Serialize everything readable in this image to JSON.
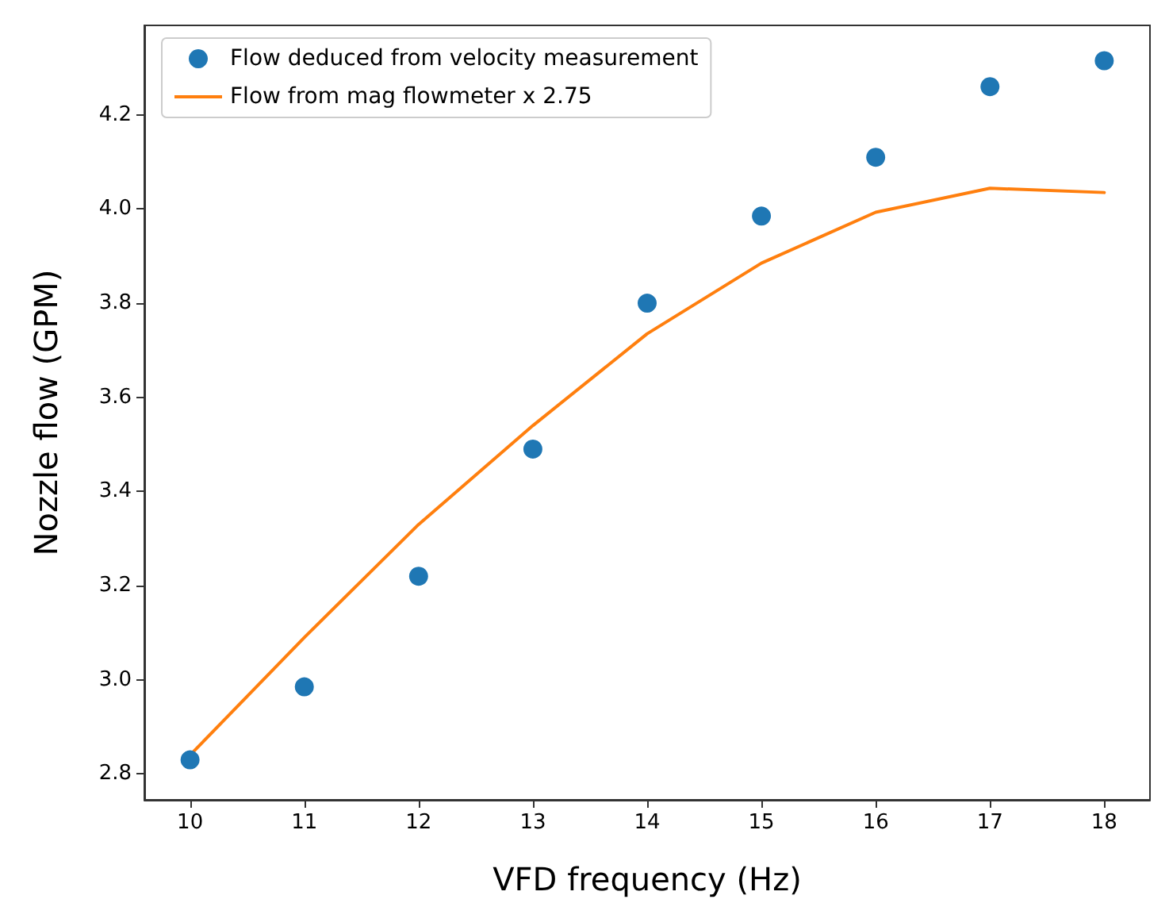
{
  "chart_data": {
    "type": "scatter",
    "xlabel": "VFD frequency (Hz)",
    "ylabel": "Nozzle flow (GPM)",
    "xlim": [
      9.6,
      18.4
    ],
    "xticks": [
      10,
      11,
      12,
      13,
      14,
      15,
      16,
      17,
      18
    ],
    "ylim": [
      2.745,
      4.39
    ],
    "yticks": [
      2.8,
      {
        "value": 3,
        "label": "3.0"
      },
      3.2,
      3.4,
      3.6,
      3.8,
      {
        "value": 4,
        "label": "4.0"
      },
      4.2
    ],
    "grid": false,
    "legend": "top left",
    "marker": "circle",
    "x": [
      10,
      11,
      12,
      13,
      14,
      15,
      16,
      17,
      18
    ],
    "series": [
      {
        "name": "Flow deduced from velocity measurement",
        "color": "#1f77b4",
        "values": [
          2.83,
          2.985,
          3.22,
          3.49,
          3.8,
          3.985,
          4.11,
          4.26,
          4.315
        ]
      },
      {
        "name": "Flow from mag flowmeter x 2.75",
        "type": "line",
        "color": "#ff7f0e",
        "marker": "none",
        "values": [
          2.84,
          3.09,
          3.33,
          3.54,
          3.735,
          3.885,
          3.993,
          4.044,
          4.035
        ]
      }
    ]
  }
}
